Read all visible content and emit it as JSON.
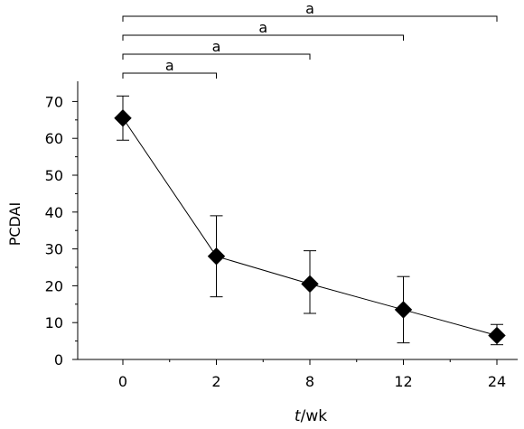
{
  "chart_data": {
    "type": "line",
    "xlabel_italic": "t",
    "xlabel_rest": "/wk",
    "ylabel": "PCDAI",
    "categories": [
      "0",
      "2",
      "8",
      "12",
      "24"
    ],
    "values": [
      65.5,
      28,
      20.5,
      13.5,
      6.5
    ],
    "error_low": [
      59.5,
      17,
      12.5,
      4.5,
      4
    ],
    "error_high": [
      71.5,
      39,
      29.5,
      22.5,
      9.5
    ],
    "ylim": [
      0,
      75
    ],
    "yticks": [
      0,
      10,
      20,
      30,
      40,
      50,
      60,
      70
    ],
    "significance": [
      {
        "from": "0",
        "to": "2",
        "label": "a"
      },
      {
        "from": "0",
        "to": "8",
        "label": "a"
      },
      {
        "from": "0",
        "to": "12",
        "label": "a"
      },
      {
        "from": "0",
        "to": "24",
        "label": "a"
      }
    ],
    "grid": false,
    "marker": "diamond",
    "line_color": "#000000",
    "marker_color": "#000000"
  }
}
